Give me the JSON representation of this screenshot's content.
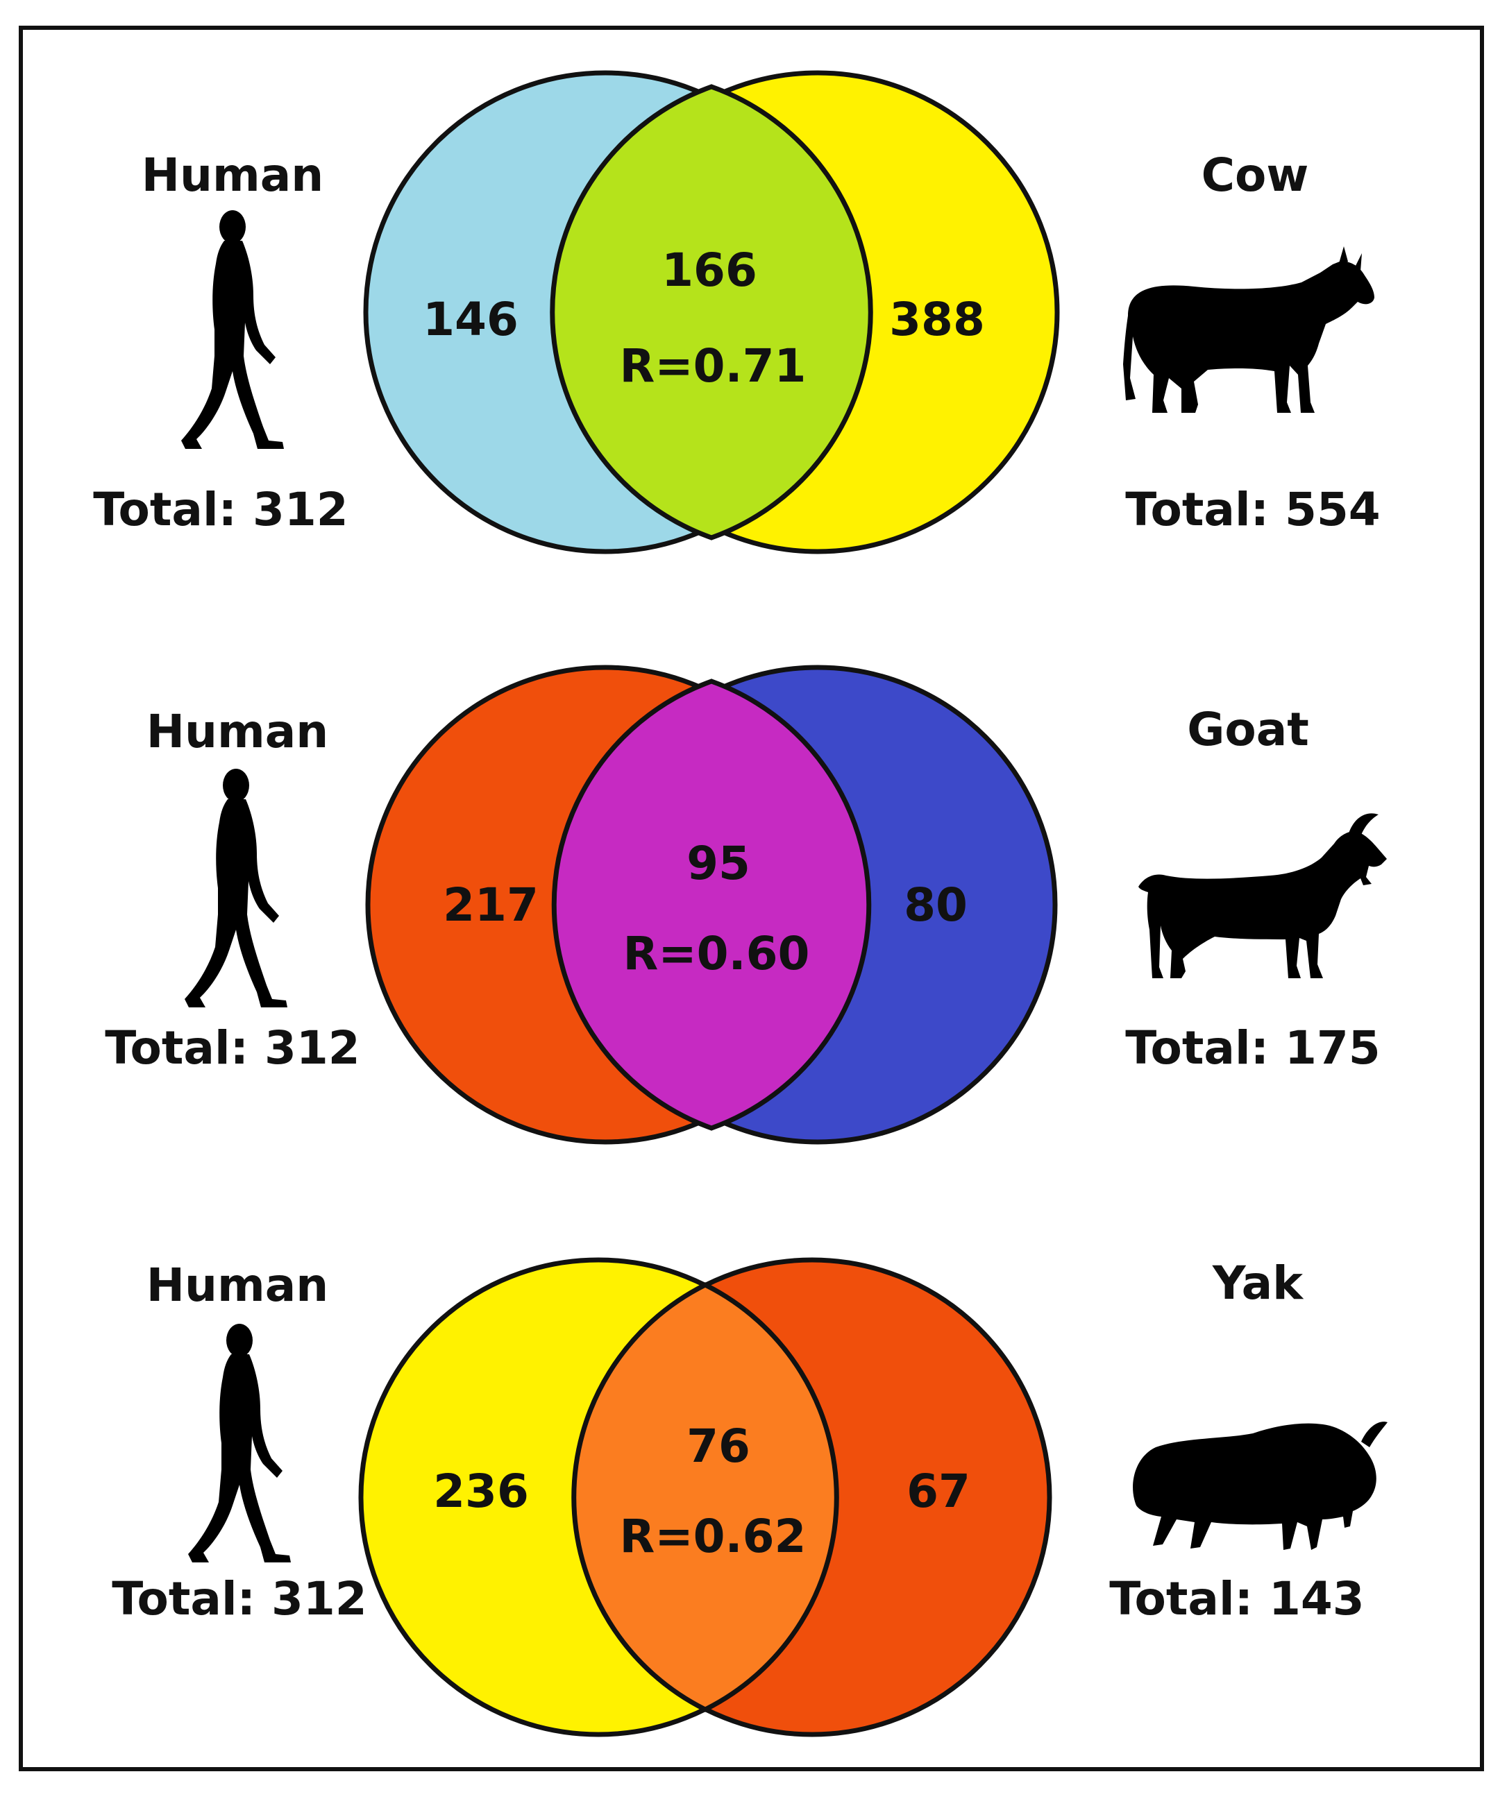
{
  "panels": [
    {
      "left_species": "Human",
      "left_total": "Total: 312",
      "right_species": "Cow",
      "right_total": "Total: 554",
      "left_only": "146",
      "overlap": "166",
      "correlation": "R=0.71",
      "right_only": "388",
      "left_color": "#9dd8e8",
      "overlap_color": "#b5e31b",
      "right_color": "#fff200",
      "left_icon": "human-walking-silhouette",
      "right_icon": "cow-silhouette"
    },
    {
      "left_species": "Human",
      "left_total": "Total: 312",
      "right_species": "Goat",
      "right_total": "Total: 175",
      "left_only": "217",
      "overlap": "95",
      "correlation": "R=0.60",
      "right_only": "80",
      "left_color": "#f04f0c",
      "overlap_color": "#c62ac2",
      "right_color": "#3d49c9",
      "left_icon": "human-walking-silhouette",
      "right_icon": "goat-silhouette"
    },
    {
      "left_species": "Human",
      "left_total": "Total: 312",
      "right_species": "Yak",
      "right_total": "Total: 143",
      "left_only": "236",
      "overlap": "76",
      "correlation": "R=0.62",
      "right_only": "67",
      "left_color": "#fff200",
      "overlap_color": "#fb7d20",
      "right_color": "#f04f0c",
      "left_icon": "human-walking-silhouette",
      "right_icon": "yak-silhouette"
    }
  ]
}
